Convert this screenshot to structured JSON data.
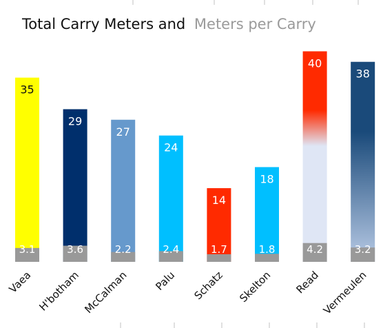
{
  "chart_data": {
    "type": "bar",
    "title": "Total Carry Meters and",
    "title_secondary": "Meters per Carry",
    "categories": [
      "Vaea",
      "H'botham",
      "McCalman",
      "Palu",
      "Schatz",
      "Skelton",
      "Read",
      "Vermeulen"
    ],
    "series": [
      {
        "name": "Total Carry Meters",
        "values": [
          35,
          29,
          27,
          24,
          14,
          18,
          40,
          38
        ],
        "colors": [
          "#ffff00",
          "#002f6c",
          "#6699cc",
          "#00bfff",
          "#ff2a00",
          "#00bfff",
          "#ff2a00",
          "#1a4a7a"
        ],
        "gradient_to": [
          null,
          null,
          null,
          null,
          null,
          null,
          "#dfe6f5",
          "#b9cbe6"
        ],
        "label_colors": [
          "#111111",
          "#ffffff",
          "#ffffff",
          "#ffffff",
          "#ffffff",
          "#ffffff",
          "#ffffff",
          "#ffffff"
        ]
      },
      {
        "name": "Meters per Carry",
        "values": [
          3.1,
          3.6,
          2.2,
          2.4,
          1.7,
          1.8,
          4.2,
          3.2
        ],
        "color": "#999999"
      }
    ],
    "ylim": [
      0,
      41.5
    ],
    "grid": false,
    "legend": "none"
  }
}
